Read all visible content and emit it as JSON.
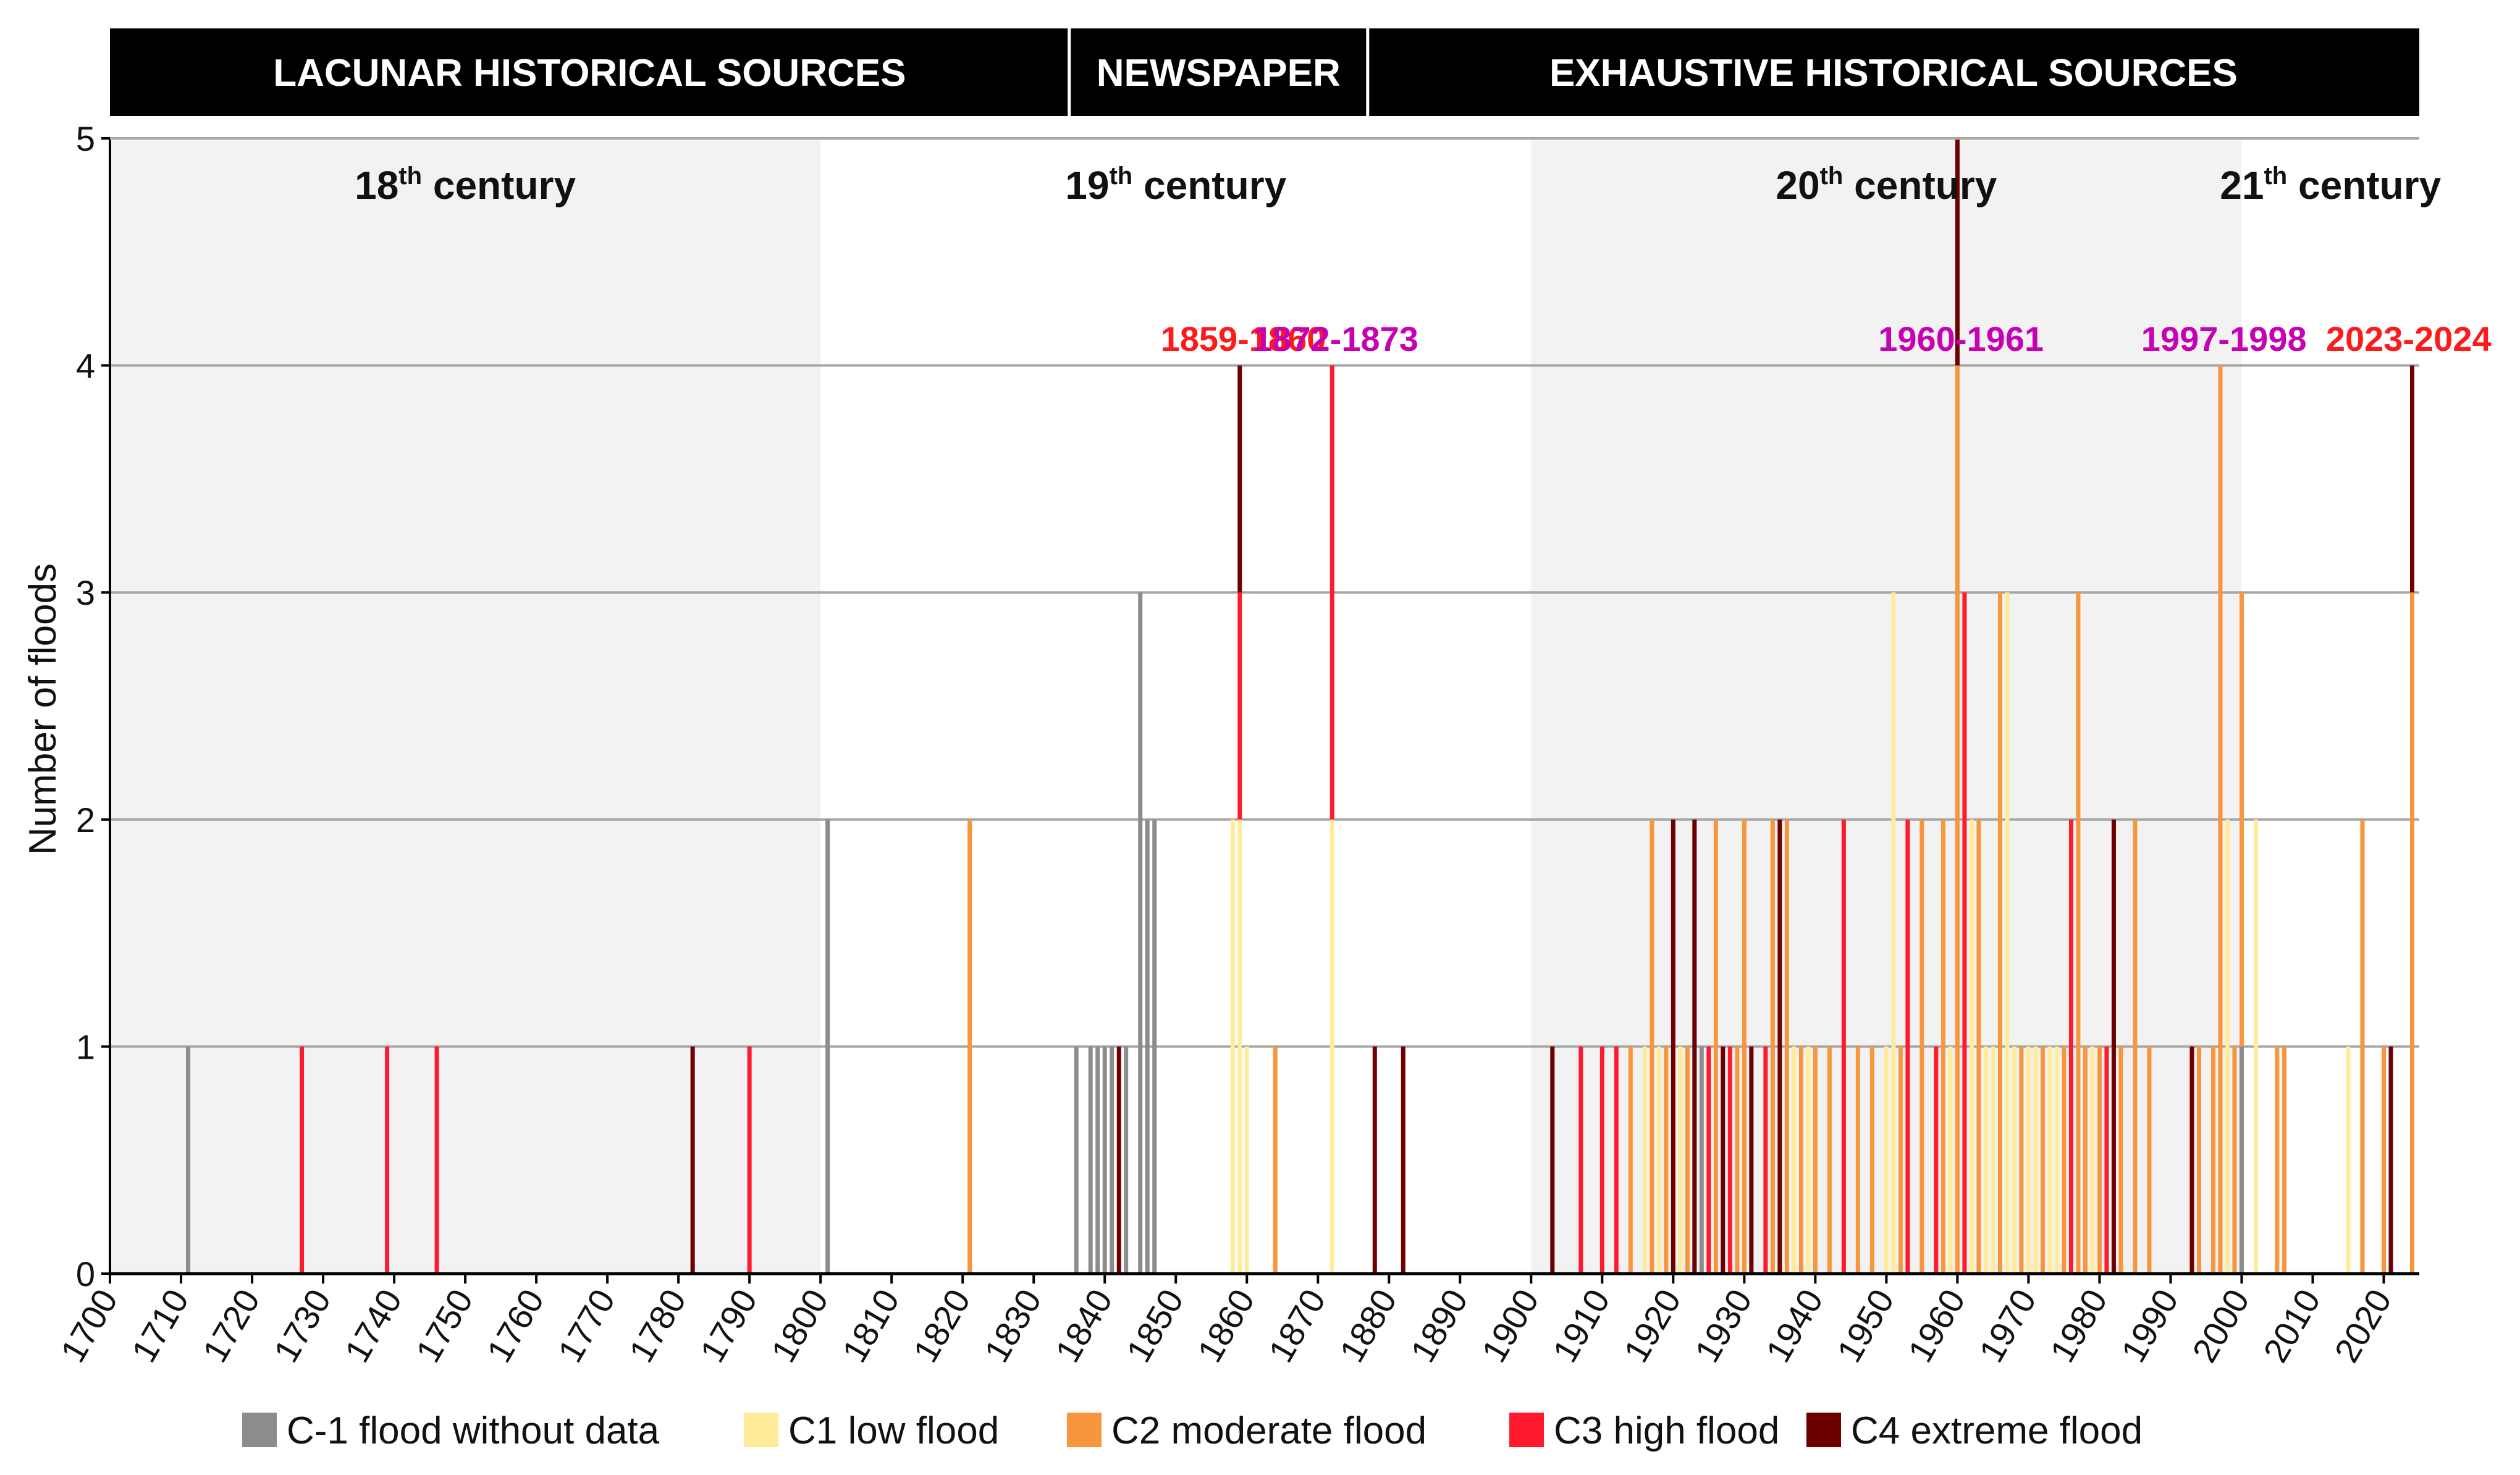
{
  "headers": [
    {
      "label": "LACUNAR HISTORICAL SOURCES",
      "from": 1700,
      "to": 1835
    },
    {
      "label": "NEWSPAPER",
      "from": 1835,
      "to": 1877
    },
    {
      "label": "EXHAUSTIVE HISTORICAL SOURCES",
      "from": 1877,
      "to": 2025
    }
  ],
  "centuries": [
    {
      "label": "18",
      "sup": "th",
      "rest": " century",
      "from": 1700,
      "to": 1800,
      "shaded": true
    },
    {
      "label": "19",
      "sup": "th",
      "rest": " century",
      "from": 1800,
      "to": 1900,
      "shaded": false
    },
    {
      "label": "20",
      "sup": "th",
      "rest": " century",
      "from": 1900,
      "to": 2000,
      "shaded": true
    },
    {
      "label": "21",
      "sup": "th",
      "rest": " century",
      "from": 2000,
      "to": 2025,
      "shaded": false
    }
  ],
  "annotations": [
    {
      "text": "1859-1860",
      "year": 1859.5,
      "color": "#ff1a1a"
    },
    {
      "text": "1872-1873",
      "year": 1872.5,
      "color": "#c800b4"
    },
    {
      "text": "1960-1961",
      "year": 1960.5,
      "color": "#c800b4"
    },
    {
      "text": "1997-1998",
      "year": 1997.5,
      "color": "#c800b4"
    },
    {
      "text": "2023-2024",
      "year": 2023.5,
      "color": "#ff1a1a"
    }
  ],
  "chart_data": {
    "type": "bar",
    "title": "",
    "xlabel": "",
    "ylabel": "Number of floods",
    "xlim": [
      1700,
      2025
    ],
    "ylim": [
      0,
      5
    ],
    "x_ticks": [
      1700,
      1710,
      1720,
      1730,
      1740,
      1750,
      1760,
      1770,
      1780,
      1790,
      1800,
      1810,
      1820,
      1830,
      1840,
      1850,
      1860,
      1870,
      1880,
      1890,
      1900,
      1910,
      1920,
      1930,
      1940,
      1950,
      1960,
      1970,
      1980,
      1990,
      2000,
      2010,
      2020
    ],
    "y_ticks": [
      0,
      1,
      2,
      3,
      4,
      5
    ],
    "categories": [
      {
        "key": "Cm1",
        "name": "C-1 flood without data",
        "color": "#8c8c8c"
      },
      {
        "key": "C1",
        "name": "C1 low flood",
        "color": "#ffeb9a"
      },
      {
        "key": "C2",
        "name": "C2 moderate flood",
        "color": "#f7963c"
      },
      {
        "key": "C3",
        "name": "C3 high flood",
        "color": "#ff1a2e"
      },
      {
        "key": "C4",
        "name": "C4 extreme flood",
        "color": "#6e0000"
      }
    ],
    "bars": [
      {
        "year": 1711,
        "cat": "Cm1",
        "from": 0,
        "to": 1
      },
      {
        "year": 1727,
        "cat": "C3",
        "from": 0,
        "to": 1
      },
      {
        "year": 1739,
        "cat": "C3",
        "from": 0,
        "to": 1
      },
      {
        "year": 1746,
        "cat": "C3",
        "from": 0,
        "to": 1
      },
      {
        "year": 1782,
        "cat": "C4",
        "from": 0,
        "to": 1
      },
      {
        "year": 1790,
        "cat": "C3",
        "from": 0,
        "to": 1
      },
      {
        "year": 1801,
        "cat": "Cm1",
        "from": 0,
        "to": 2
      },
      {
        "year": 1821,
        "cat": "C2",
        "from": 0,
        "to": 2
      },
      {
        "year": 1836,
        "cat": "Cm1",
        "from": 0,
        "to": 1
      },
      {
        "year": 1838,
        "cat": "Cm1",
        "from": 0,
        "to": 1
      },
      {
        "year": 1839,
        "cat": "Cm1",
        "from": 0,
        "to": 1
      },
      {
        "year": 1840,
        "cat": "Cm1",
        "from": 0,
        "to": 1
      },
      {
        "year": 1841,
        "cat": "Cm1",
        "from": 0,
        "to": 1
      },
      {
        "year": 1842,
        "cat": "C4",
        "from": 0,
        "to": 1
      },
      {
        "year": 1843,
        "cat": "Cm1",
        "from": 0,
        "to": 1
      },
      {
        "year": 1845,
        "cat": "Cm1",
        "from": 0,
        "to": 3
      },
      {
        "year": 1846,
        "cat": "Cm1",
        "from": 0,
        "to": 2
      },
      {
        "year": 1847,
        "cat": "Cm1",
        "from": 0,
        "to": 2
      },
      {
        "year": 1858,
        "cat": "C1",
        "from": 0,
        "to": 2
      },
      {
        "year": 1859,
        "cat": "C1",
        "from": 0,
        "to": 2
      },
      {
        "year": 1859,
        "cat": "C3",
        "from": 2,
        "to": 3
      },
      {
        "year": 1859,
        "cat": "C4",
        "from": 3,
        "to": 4
      },
      {
        "year": 1860,
        "cat": "C1",
        "from": 0,
        "to": 1
      },
      {
        "year": 1864,
        "cat": "C2",
        "from": 0,
        "to": 1
      },
      {
        "year": 1872,
        "cat": "C1",
        "from": 0,
        "to": 2
      },
      {
        "year": 1872,
        "cat": "C3",
        "from": 2,
        "to": 4
      },
      {
        "year": 1878,
        "cat": "C4",
        "from": 0,
        "to": 1
      },
      {
        "year": 1882,
        "cat": "C4",
        "from": 0,
        "to": 1
      },
      {
        "year": 1903,
        "cat": "C4",
        "from": 0,
        "to": 1
      },
      {
        "year": 1907,
        "cat": "C3",
        "from": 0,
        "to": 1
      },
      {
        "year": 1910,
        "cat": "C3",
        "from": 0,
        "to": 1
      },
      {
        "year": 1912,
        "cat": "C3",
        "from": 0,
        "to": 1
      },
      {
        "year": 1914,
        "cat": "C2",
        "from": 0,
        "to": 1
      },
      {
        "year": 1916,
        "cat": "C1",
        "from": 0,
        "to": 1
      },
      {
        "year": 1917,
        "cat": "C2",
        "from": 0,
        "to": 2
      },
      {
        "year": 1918,
        "cat": "C1",
        "from": 0,
        "to": 1
      },
      {
        "year": 1919,
        "cat": "C2",
        "from": 0,
        "to": 1
      },
      {
        "year": 1920,
        "cat": "C4",
        "from": 0,
        "to": 2
      },
      {
        "year": 1921,
        "cat": "C1",
        "from": 0,
        "to": 1
      },
      {
        "year": 1922,
        "cat": "C2",
        "from": 0,
        "to": 1
      },
      {
        "year": 1923,
        "cat": "C4",
        "from": 0,
        "to": 2
      },
      {
        "year": 1924,
        "cat": "Cm1",
        "from": 0,
        "to": 1
      },
      {
        "year": 1925,
        "cat": "C3",
        "from": 0,
        "to": 1
      },
      {
        "year": 1926,
        "cat": "C2",
        "from": 0,
        "to": 2
      },
      {
        "year": 1927,
        "cat": "C4",
        "from": 0,
        "to": 1
      },
      {
        "year": 1928,
        "cat": "C3",
        "from": 0,
        "to": 1
      },
      {
        "year": 1929,
        "cat": "C2",
        "from": 0,
        "to": 1
      },
      {
        "year": 1930,
        "cat": "C2",
        "from": 0,
        "to": 2
      },
      {
        "year": 1931,
        "cat": "C4",
        "from": 0,
        "to": 1
      },
      {
        "year": 1933,
        "cat": "C3",
        "from": 0,
        "to": 1
      },
      {
        "year": 1934,
        "cat": "C2",
        "from": 0,
        "to": 2
      },
      {
        "year": 1935,
        "cat": "C4",
        "from": 0,
        "to": 2
      },
      {
        "year": 1936,
        "cat": "C2",
        "from": 0,
        "to": 2
      },
      {
        "year": 1937,
        "cat": "C1",
        "from": 0,
        "to": 1
      },
      {
        "year": 1938,
        "cat": "C2",
        "from": 0,
        "to": 1
      },
      {
        "year": 1939,
        "cat": "C1",
        "from": 0,
        "to": 1
      },
      {
        "year": 1940,
        "cat": "C2",
        "from": 0,
        "to": 1
      },
      {
        "year": 1942,
        "cat": "C2",
        "from": 0,
        "to": 1
      },
      {
        "year": 1944,
        "cat": "C3",
        "from": 0,
        "to": 2
      },
      {
        "year": 1946,
        "cat": "C2",
        "from": 0,
        "to": 1
      },
      {
        "year": 1948,
        "cat": "C2",
        "from": 0,
        "to": 1
      },
      {
        "year": 1950,
        "cat": "C1",
        "from": 0,
        "to": 1
      },
      {
        "year": 1951,
        "cat": "C1",
        "from": 0,
        "to": 3
      },
      {
        "year": 1952,
        "cat": "C2",
        "from": 0,
        "to": 1
      },
      {
        "year": 1953,
        "cat": "C3",
        "from": 0,
        "to": 2
      },
      {
        "year": 1955,
        "cat": "C2",
        "from": 0,
        "to": 2
      },
      {
        "year": 1957,
        "cat": "C3",
        "from": 0,
        "to": 1
      },
      {
        "year": 1958,
        "cat": "C2",
        "from": 0,
        "to": 2
      },
      {
        "year": 1959,
        "cat": "C1",
        "from": 0,
        "to": 1
      },
      {
        "year": 1960,
        "cat": "C2",
        "from": 0,
        "to": 4
      },
      {
        "year": 1960,
        "cat": "C4",
        "from": 4,
        "to": 5
      },
      {
        "year": 1961,
        "cat": "C3",
        "from": 0,
        "to": 3
      },
      {
        "year": 1962,
        "cat": "C1",
        "from": 0,
        "to": 2
      },
      {
        "year": 1963,
        "cat": "C2",
        "from": 0,
        "to": 2
      },
      {
        "year": 1964,
        "cat": "C1",
        "from": 0,
        "to": 1
      },
      {
        "year": 1965,
        "cat": "C1",
        "from": 0,
        "to": 1
      },
      {
        "year": 1966,
        "cat": "C2",
        "from": 0,
        "to": 3
      },
      {
        "year": 1967,
        "cat": "C1",
        "from": 0,
        "to": 3
      },
      {
        "year": 1968,
        "cat": "C1",
        "from": 0,
        "to": 1
      },
      {
        "year": 1969,
        "cat": "C2",
        "from": 0,
        "to": 1
      },
      {
        "year": 1970,
        "cat": "C1",
        "from": 0,
        "to": 1
      },
      {
        "year": 1971,
        "cat": "C1",
        "from": 0,
        "to": 1
      },
      {
        "year": 1972,
        "cat": "C2",
        "from": 0,
        "to": 1
      },
      {
        "year": 1973,
        "cat": "C1",
        "from": 0,
        "to": 1
      },
      {
        "year": 1974,
        "cat": "C1",
        "from": 0,
        "to": 1
      },
      {
        "year": 1975,
        "cat": "C2",
        "from": 0,
        "to": 1
      },
      {
        "year": 1976,
        "cat": "C3",
        "from": 0,
        "to": 2
      },
      {
        "year": 1977,
        "cat": "C2",
        "from": 0,
        "to": 3
      },
      {
        "year": 1978,
        "cat": "C2",
        "from": 0,
        "to": 1
      },
      {
        "year": 1979,
        "cat": "C1",
        "from": 0,
        "to": 1
      },
      {
        "year": 1980,
        "cat": "C2",
        "from": 0,
        "to": 1
      },
      {
        "year": 1981,
        "cat": "C3",
        "from": 0,
        "to": 1
      },
      {
        "year": 1982,
        "cat": "C4",
        "from": 0,
        "to": 2
      },
      {
        "year": 1983,
        "cat": "C2",
        "from": 0,
        "to": 1
      },
      {
        "year": 1985,
        "cat": "C2",
        "from": 0,
        "to": 2
      },
      {
        "year": 1987,
        "cat": "C2",
        "from": 0,
        "to": 1
      },
      {
        "year": 1993,
        "cat": "C4",
        "from": 0,
        "to": 1
      },
      {
        "year": 1994,
        "cat": "C2",
        "from": 0,
        "to": 1
      },
      {
        "year": 1996,
        "cat": "C2",
        "from": 0,
        "to": 1
      },
      {
        "year": 1997,
        "cat": "C2",
        "from": 0,
        "to": 4
      },
      {
        "year": 1998,
        "cat": "C1",
        "from": 0,
        "to": 2
      },
      {
        "year": 1999,
        "cat": "C2",
        "from": 0,
        "to": 1
      },
      {
        "year": 2000,
        "cat": "Cm1",
        "from": 0,
        "to": 1
      },
      {
        "year": 2000,
        "cat": "C2",
        "from": 1,
        "to": 3
      },
      {
        "year": 2002,
        "cat": "C1",
        "from": 0,
        "to": 2
      },
      {
        "year": 2005,
        "cat": "C2",
        "from": 0,
        "to": 1
      },
      {
        "year": 2006,
        "cat": "C2",
        "from": 0,
        "to": 1
      },
      {
        "year": 2015,
        "cat": "C1",
        "from": 0,
        "to": 1
      },
      {
        "year": 2017,
        "cat": "C2",
        "from": 0,
        "to": 2
      },
      {
        "year": 2020,
        "cat": "C2",
        "from": 0,
        "to": 1
      },
      {
        "year": 2021,
        "cat": "C4",
        "from": 0,
        "to": 1
      },
      {
        "year": 2024,
        "cat": "C2",
        "from": 0,
        "to": 3
      },
      {
        "year": 2024,
        "cat": "C4",
        "from": 3,
        "to": 4
      }
    ]
  }
}
